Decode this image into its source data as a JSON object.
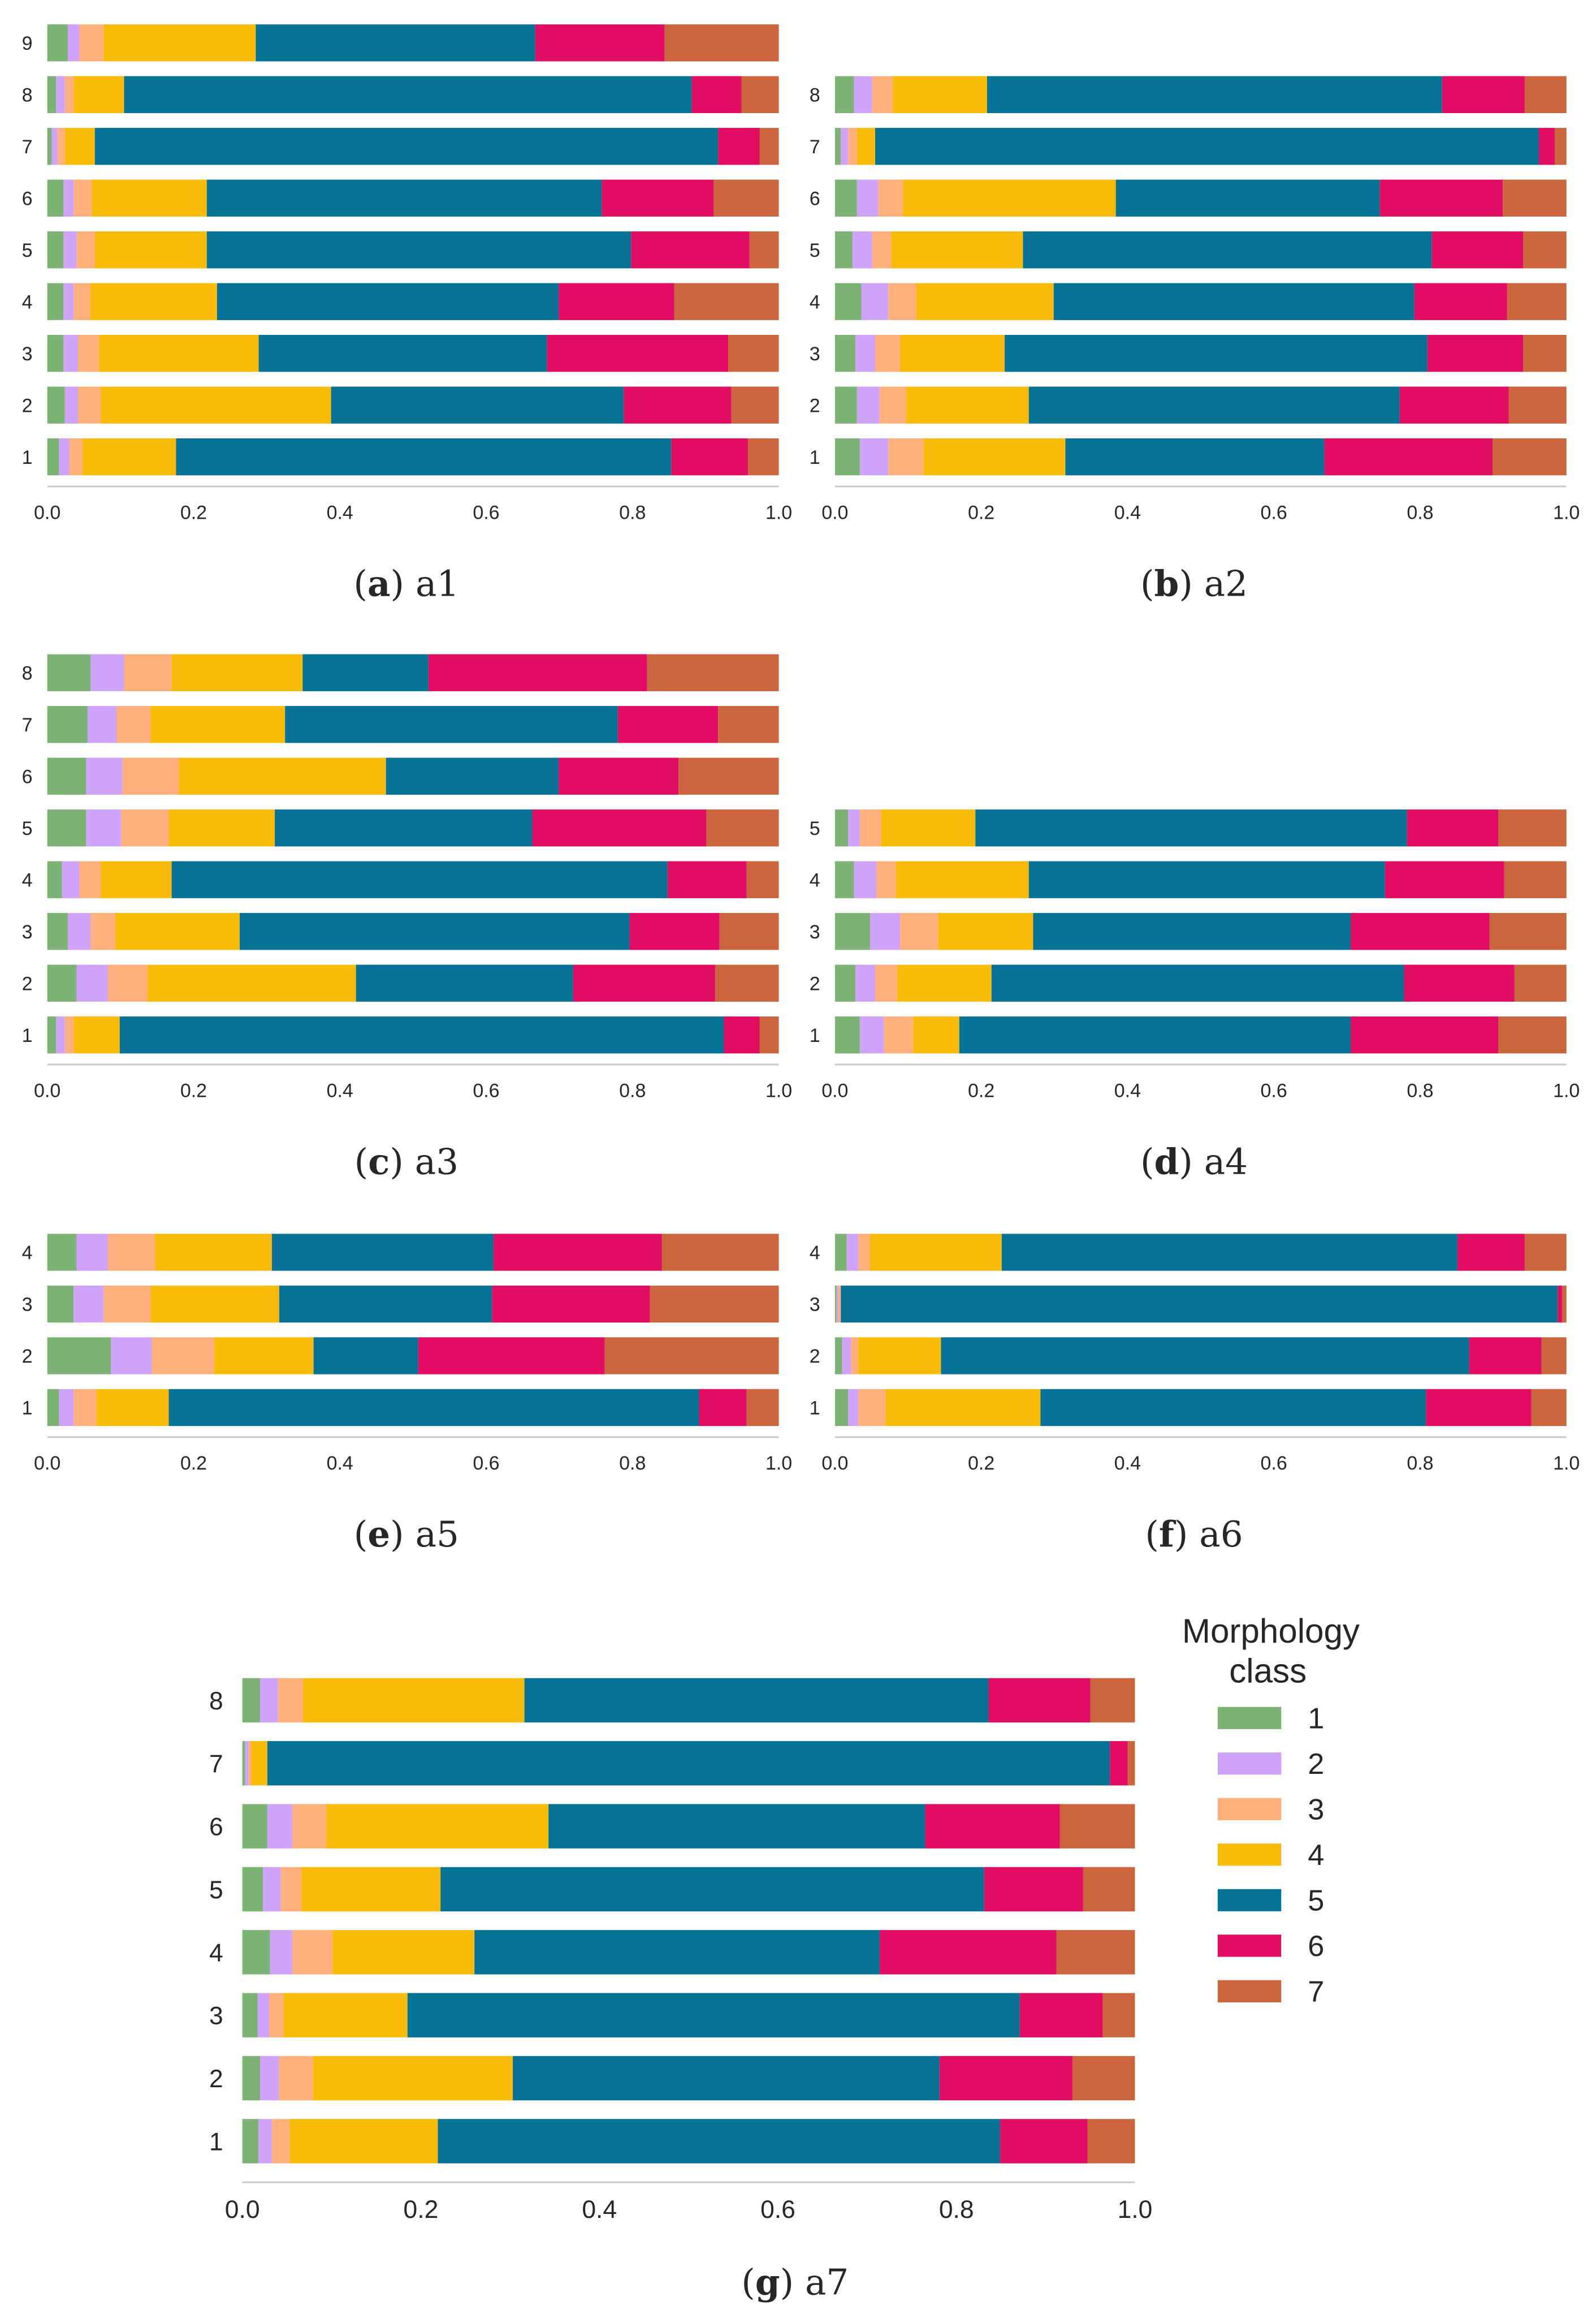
{
  "classes": [
    "1",
    "2",
    "3",
    "4",
    "5",
    "6",
    "7"
  ],
  "colors": [
    "#7cb274",
    "#cfa3f8",
    "#ffb07c",
    "#f8bb0a",
    "#067396",
    "#e00d63",
    "#cb653d"
  ],
  "legend": {
    "title_line1": "Morphology",
    "title_line2": "class",
    "placement": "right of panel g"
  },
  "chart_data": [
    {
      "type": "bar",
      "stacked": true,
      "orientation": "horizontal",
      "letter": "a",
      "title": "a1",
      "xlim": [
        0,
        1
      ],
      "xticks": [
        "0.0",
        "0.2",
        "0.4",
        "0.6",
        "0.8",
        "1.0"
      ],
      "categories": [
        "9",
        "8",
        "7",
        "6",
        "5",
        "4",
        "3",
        "2",
        "1"
      ],
      "values": [
        [
          0.028,
          0.016,
          0.033,
          0.208,
          0.382,
          0.177,
          0.156
        ],
        [
          0.012,
          0.012,
          0.012,
          0.069,
          0.776,
          0.068,
          0.051
        ],
        [
          0.006,
          0.008,
          0.01,
          0.041,
          0.852,
          0.057,
          0.026
        ],
        [
          0.022,
          0.014,
          0.025,
          0.157,
          0.54,
          0.153,
          0.089
        ],
        [
          0.022,
          0.018,
          0.025,
          0.153,
          0.58,
          0.162,
          0.04
        ],
        [
          0.022,
          0.014,
          0.023,
          0.173,
          0.467,
          0.158,
          0.143
        ],
        [
          0.022,
          0.02,
          0.029,
          0.218,
          0.394,
          0.248,
          0.069
        ],
        [
          0.024,
          0.018,
          0.031,
          0.315,
          0.4,
          0.147,
          0.065
        ],
        [
          0.016,
          0.014,
          0.018,
          0.128,
          0.677,
          0.105,
          0.042
        ]
      ]
    },
    {
      "type": "bar",
      "stacked": true,
      "orientation": "horizontal",
      "letter": "b",
      "title": "a2",
      "xlim": [
        0,
        1
      ],
      "xticks": [
        "0.0",
        "0.2",
        "0.4",
        "0.6",
        "0.8",
        "1.0"
      ],
      "categories": [
        "8",
        "7",
        "6",
        "5",
        "4",
        "3",
        "2",
        "1"
      ],
      "values": [
        [
          0.026,
          0.025,
          0.028,
          0.129,
          0.622,
          0.113,
          0.057
        ],
        [
          0.008,
          0.01,
          0.012,
          0.025,
          0.907,
          0.022,
          0.016
        ],
        [
          0.03,
          0.029,
          0.034,
          0.291,
          0.361,
          0.168,
          0.087
        ],
        [
          0.024,
          0.027,
          0.026,
          0.18,
          0.559,
          0.125,
          0.059
        ],
        [
          0.036,
          0.037,
          0.038,
          0.188,
          0.493,
          0.127,
          0.081
        ],
        [
          0.028,
          0.027,
          0.034,
          0.143,
          0.578,
          0.131,
          0.059
        ],
        [
          0.03,
          0.031,
          0.036,
          0.168,
          0.507,
          0.149,
          0.079
        ],
        [
          0.034,
          0.039,
          0.048,
          0.194,
          0.354,
          0.23,
          0.101
        ]
      ]
    },
    {
      "type": "bar",
      "stacked": true,
      "orientation": "horizontal",
      "letter": "c",
      "title": "a3",
      "xlim": [
        0,
        1
      ],
      "xticks": [
        "0.0",
        "0.2",
        "0.4",
        "0.6",
        "0.8",
        "1.0"
      ],
      "categories": [
        "8",
        "7",
        "6",
        "5",
        "4",
        "3",
        "2",
        "1"
      ],
      "values": [
        [
          0.059,
          0.046,
          0.065,
          0.179,
          0.172,
          0.299,
          0.18
        ],
        [
          0.055,
          0.04,
          0.046,
          0.184,
          0.455,
          0.137,
          0.083
        ],
        [
          0.053,
          0.05,
          0.077,
          0.283,
          0.236,
          0.164,
          0.137
        ],
        [
          0.053,
          0.048,
          0.065,
          0.145,
          0.352,
          0.238,
          0.099
        ],
        [
          0.02,
          0.024,
          0.029,
          0.097,
          0.678,
          0.108,
          0.044
        ],
        [
          0.028,
          0.031,
          0.034,
          0.17,
          0.533,
          0.123,
          0.081
        ],
        [
          0.04,
          0.043,
          0.054,
          0.285,
          0.297,
          0.194,
          0.087
        ],
        [
          0.012,
          0.012,
          0.012,
          0.063,
          0.826,
          0.049,
          0.026
        ]
      ]
    },
    {
      "type": "bar",
      "stacked": true,
      "orientation": "horizontal",
      "letter": "d",
      "title": "a4",
      "xlim": [
        0,
        1
      ],
      "xticks": [
        "0.0",
        "0.2",
        "0.4",
        "0.6",
        "0.8",
        "1.0"
      ],
      "categories": [
        "5",
        "4",
        "3",
        "2",
        "1"
      ],
      "values": [
        [
          0.018,
          0.016,
          0.029,
          0.129,
          0.59,
          0.125,
          0.093
        ],
        [
          0.026,
          0.031,
          0.026,
          0.182,
          0.487,
          0.163,
          0.085
        ],
        [
          0.048,
          0.041,
          0.052,
          0.13,
          0.434,
          0.19,
          0.105
        ],
        [
          0.028,
          0.027,
          0.03,
          0.129,
          0.564,
          0.151,
          0.071
        ],
        [
          0.034,
          0.033,
          0.04,
          0.063,
          0.535,
          0.202,
          0.093
        ]
      ]
    },
    {
      "type": "bar",
      "stacked": true,
      "orientation": "horizontal",
      "letter": "e",
      "title": "a5",
      "xlim": [
        0,
        1
      ],
      "xticks": [
        "0.0",
        "0.2",
        "0.4",
        "0.6",
        "0.8",
        "1.0"
      ],
      "categories": [
        "4",
        "3",
        "2",
        "1"
      ],
      "values": [
        [
          0.04,
          0.043,
          0.064,
          0.16,
          0.303,
          0.23,
          0.16
        ],
        [
          0.036,
          0.041,
          0.064,
          0.176,
          0.291,
          0.216,
          0.176
        ],
        [
          0.087,
          0.056,
          0.085,
          0.136,
          0.143,
          0.255,
          0.238
        ],
        [
          0.016,
          0.02,
          0.031,
          0.099,
          0.725,
          0.065,
          0.044
        ]
      ]
    },
    {
      "type": "bar",
      "stacked": true,
      "orientation": "horizontal",
      "letter": "f",
      "title": "a6",
      "xlim": [
        0,
        1
      ],
      "xticks": [
        "0.0",
        "0.2",
        "0.4",
        "0.6",
        "0.8",
        "1.0"
      ],
      "categories": [
        "4",
        "3",
        "2",
        "1"
      ],
      "values": [
        [
          0.016,
          0.016,
          0.016,
          0.18,
          0.623,
          0.092,
          0.057
        ],
        [
          0.002,
          0.002,
          0.004,
          0.0,
          0.98,
          0.006,
          0.006
        ],
        [
          0.01,
          0.012,
          0.01,
          0.113,
          0.722,
          0.099,
          0.034
        ],
        [
          0.018,
          0.014,
          0.037,
          0.212,
          0.527,
          0.144,
          0.048
        ]
      ]
    },
    {
      "type": "bar",
      "stacked": true,
      "orientation": "horizontal",
      "letter": "g",
      "title": "a7",
      "xlim": [
        0,
        1
      ],
      "xticks": [
        "0.0",
        "0.2",
        "0.4",
        "0.6",
        "0.8",
        "1.0"
      ],
      "categories": [
        "8",
        "7",
        "6",
        "5",
        "4",
        "3",
        "2",
        "1"
      ],
      "values": [
        [
          0.02,
          0.02,
          0.028,
          0.248,
          0.52,
          0.114,
          0.05
        ],
        [
          0.003,
          0.004,
          0.003,
          0.018,
          0.944,
          0.02,
          0.008
        ],
        [
          0.028,
          0.028,
          0.038,
          0.249,
          0.422,
          0.151,
          0.084
        ],
        [
          0.023,
          0.02,
          0.023,
          0.156,
          0.609,
          0.111,
          0.058
        ],
        [
          0.031,
          0.025,
          0.045,
          0.159,
          0.454,
          0.198,
          0.088
        ],
        [
          0.017,
          0.013,
          0.016,
          0.139,
          0.686,
          0.093,
          0.036
        ],
        [
          0.02,
          0.021,
          0.038,
          0.224,
          0.478,
          0.149,
          0.07
        ],
        [
          0.018,
          0.015,
          0.02,
          0.166,
          0.63,
          0.098,
          0.053
        ]
      ]
    }
  ]
}
